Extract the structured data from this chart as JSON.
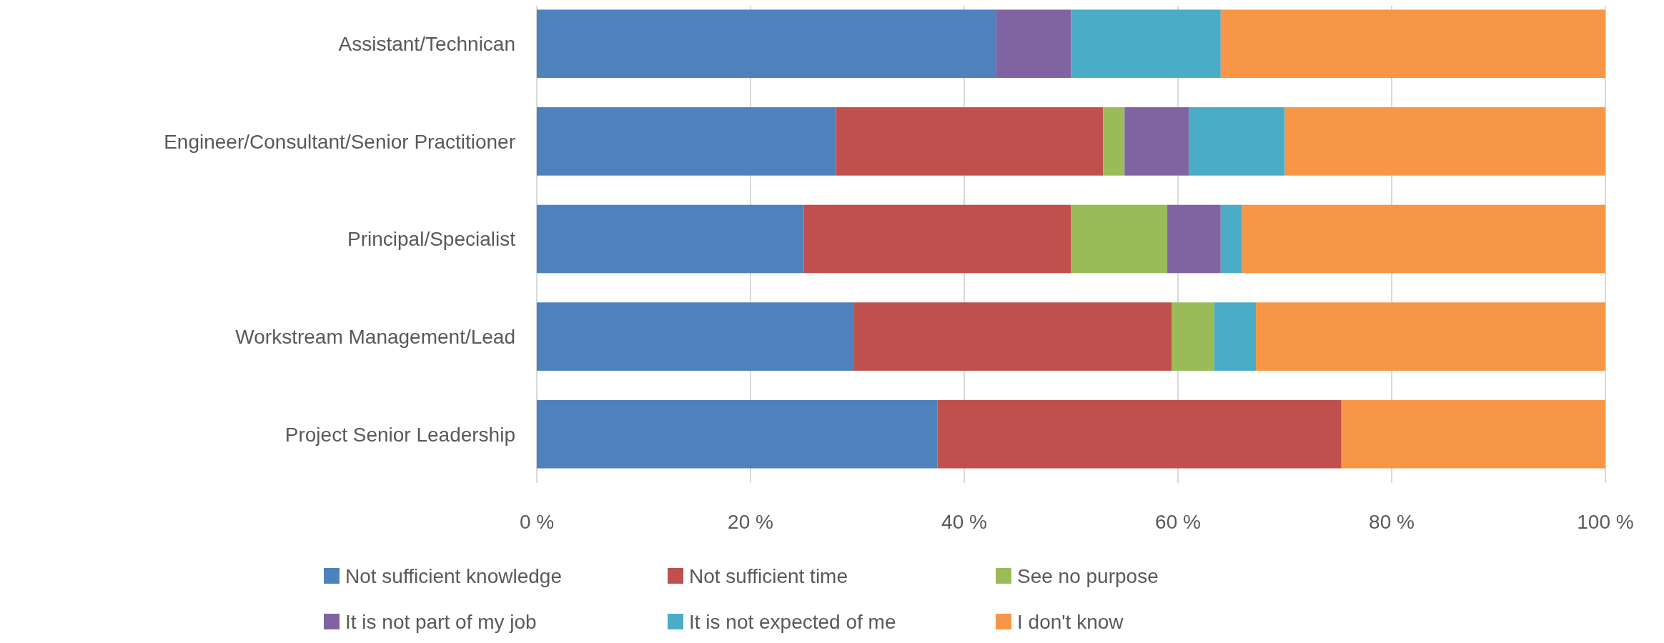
{
  "chart_data": {
    "type": "bar",
    "orientation": "horizontal",
    "stacked": true,
    "categories": [
      "Assistant/Technican",
      "Engineer/Consultant/Senior Practitioner",
      "Principal/Specialist",
      "Workstream Management/Lead",
      "Project Senior Leadership"
    ],
    "series": [
      {
        "name": "Not sufficient knowledge",
        "color": "#4f81bd",
        "values": [
          43,
          28,
          25,
          29.7,
          37.5
        ]
      },
      {
        "name": "Not sufficient time",
        "color": "#c0504d",
        "values": [
          0,
          25,
          25,
          29.7,
          37.8
        ]
      },
      {
        "name": "See no purpose",
        "color": "#9bbb59",
        "values": [
          0,
          2,
          9,
          4,
          0
        ]
      },
      {
        "name": "It is not part of my job",
        "color": "#8064a2",
        "values": [
          7,
          6,
          5,
          0,
          0
        ]
      },
      {
        "name": "It is not expected of me",
        "color": "#4bacc6",
        "values": [
          14,
          9,
          2,
          3.9,
          0
        ]
      },
      {
        "name": "I don't know",
        "color": "#f79646",
        "values": [
          36,
          30,
          34,
          32.7,
          24.7
        ]
      }
    ],
    "xlim": [
      0,
      100
    ],
    "xticks": [
      {
        "value": 0,
        "label": "0 %"
      },
      {
        "value": 20,
        "label": "20 %"
      },
      {
        "value": 40,
        "label": "40 %"
      },
      {
        "value": 60,
        "label": "60 %"
      },
      {
        "value": 80,
        "label": "80 %"
      },
      {
        "value": 100,
        "label": "100 %"
      }
    ],
    "grid": "x",
    "legend": "bottom"
  }
}
